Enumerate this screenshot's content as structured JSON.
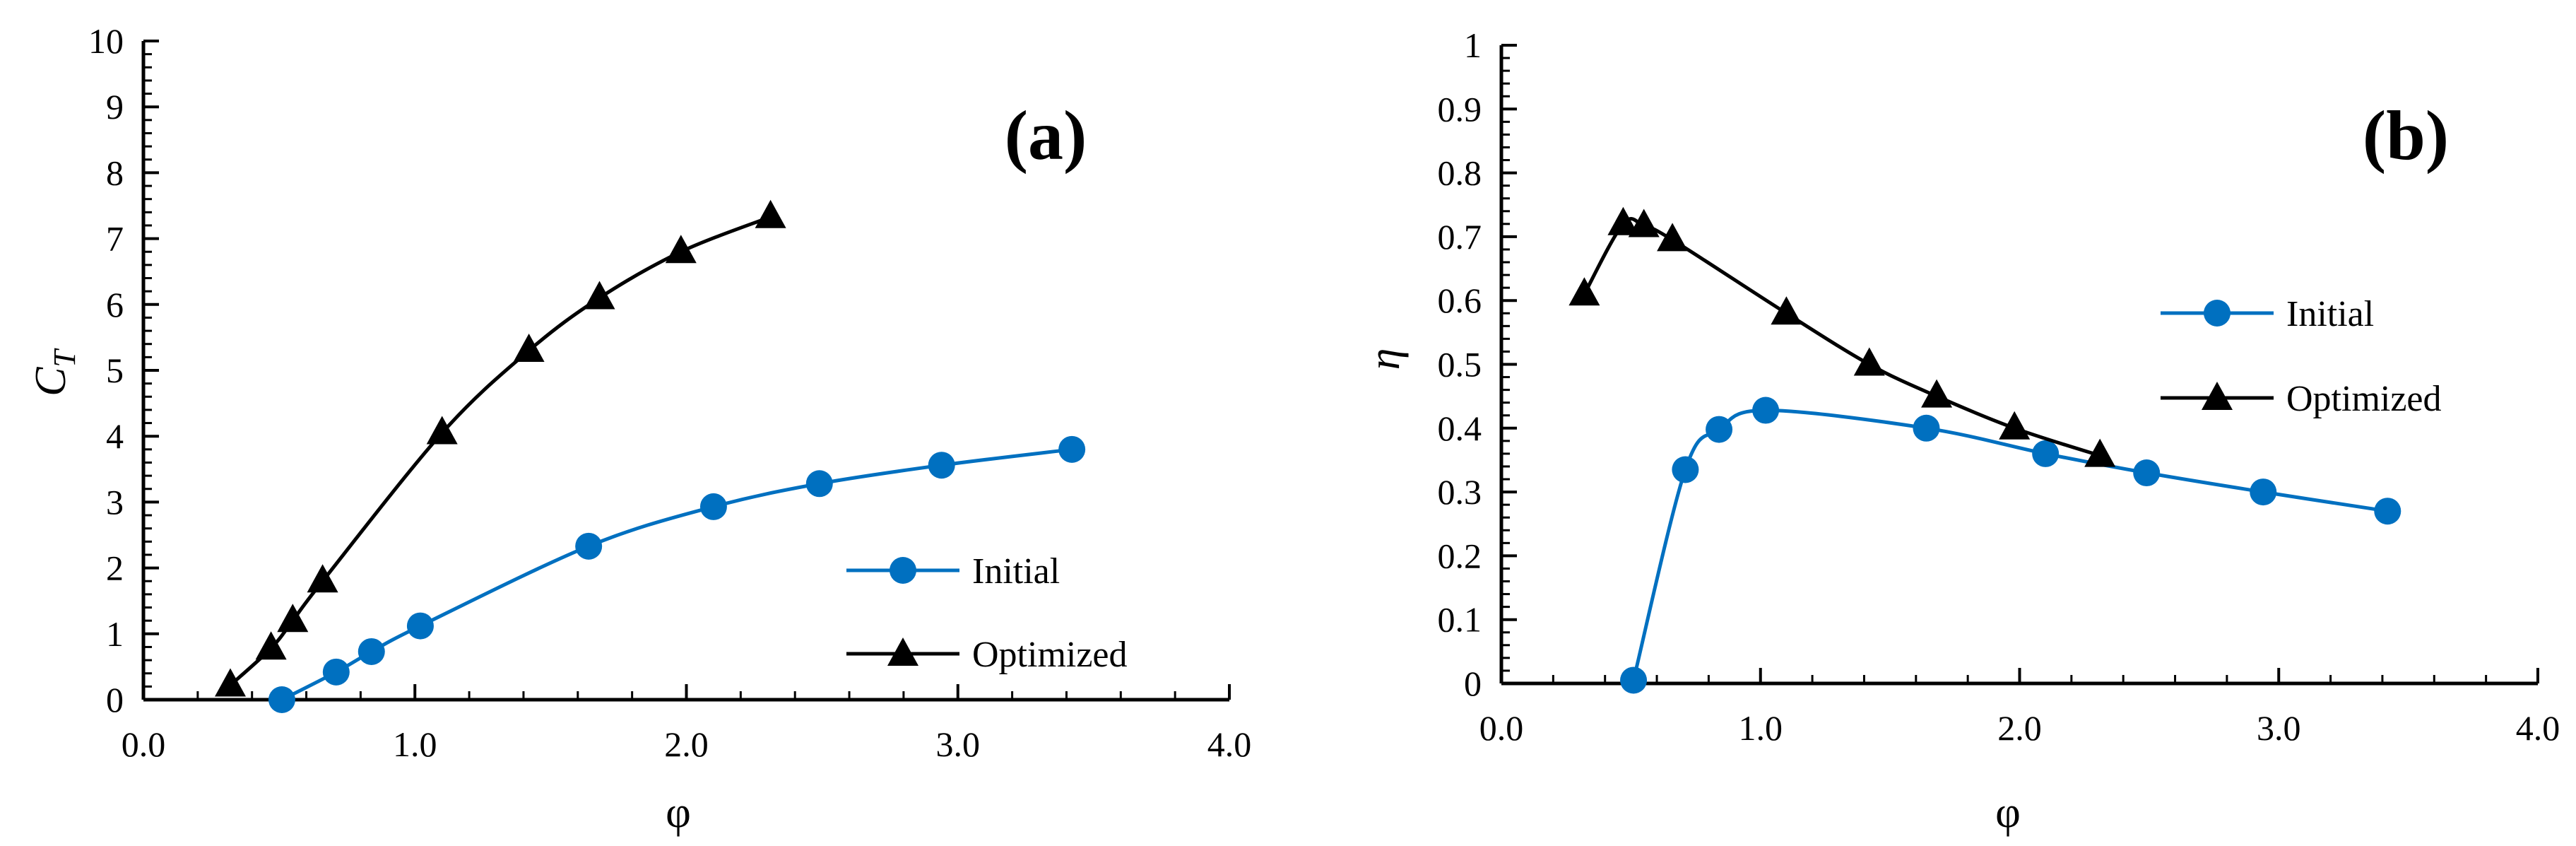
{
  "chart_data": [
    {
      "id": "a",
      "type": "line",
      "panel_label": "(a)",
      "xlabel": "φ",
      "ylabel": "C",
      "ylabel_subscript": "T",
      "xlim": [
        0,
        4
      ],
      "ylim": [
        0,
        10
      ],
      "xticks": [
        0,
        1,
        2,
        3,
        4
      ],
      "xtick_labels": [
        "0.0",
        "1.0",
        "2.0",
        "3.0",
        "4.0"
      ],
      "yticks": [
        0,
        1,
        2,
        3,
        4,
        5,
        6,
        7,
        8,
        9,
        10
      ],
      "ytick_labels": [
        "0",
        "1",
        "2",
        "3",
        "4",
        "5",
        "6",
        "7",
        "8",
        "9",
        "10"
      ],
      "x_minor_step": 0.2,
      "y_minor_step": 0.2,
      "grid": false,
      "legend_position": "bottom-right",
      "series": [
        {
          "name": "Initial",
          "color": "#0070C0",
          "marker": "circle",
          "x": [
            0.51,
            0.71,
            0.84,
            1.02,
            1.64,
            2.1,
            2.49,
            2.94,
            3.42
          ],
          "y": [
            0.0,
            0.42,
            0.73,
            1.12,
            2.33,
            2.93,
            3.28,
            3.56,
            3.8
          ]
        },
        {
          "name": "Optimized",
          "color": "#000000",
          "marker": "triangle",
          "x": [
            0.32,
            0.47,
            0.55,
            0.66,
            1.1,
            1.42,
            1.68,
            1.98,
            2.31
          ],
          "y": [
            0.22,
            0.78,
            1.2,
            1.8,
            4.05,
            5.3,
            6.1,
            6.8,
            7.33
          ]
        }
      ]
    },
    {
      "id": "b",
      "type": "line",
      "panel_label": "(b)",
      "xlabel": "φ",
      "ylabel": "η",
      "ylabel_subscript": "",
      "xlim": [
        0,
        4
      ],
      "ylim": [
        0,
        1
      ],
      "xticks": [
        0,
        1,
        2,
        3,
        4
      ],
      "xtick_labels": [
        "0.0",
        "1.0",
        "2.0",
        "3.0",
        "4.0"
      ],
      "yticks": [
        0,
        0.1,
        0.2,
        0.3,
        0.4,
        0.5,
        0.6,
        0.7,
        0.8,
        0.9,
        1
      ],
      "ytick_labels": [
        "0",
        "0.1",
        "0.2",
        "0.3",
        "0.4",
        "0.5",
        "0.6",
        "0.7",
        "0.8",
        "0.9",
        "1"
      ],
      "x_minor_step": 0.2,
      "y_minor_step": 0.02,
      "grid": false,
      "legend_position": "right",
      "series": [
        {
          "name": "Initial",
          "color": "#0070C0",
          "marker": "circle",
          "x": [
            0.51,
            0.71,
            0.84,
            1.02,
            1.64,
            2.1,
            2.49,
            2.94,
            3.42
          ],
          "y": [
            0.005,
            0.335,
            0.398,
            0.428,
            0.4,
            0.36,
            0.33,
            0.3,
            0.27
          ]
        },
        {
          "name": "Optimized",
          "color": "#000000",
          "marker": "triangle",
          "x": [
            0.32,
            0.47,
            0.55,
            0.66,
            1.1,
            1.42,
            1.68,
            1.98,
            2.31
          ],
          "y": [
            0.61,
            0.72,
            0.717,
            0.695,
            0.58,
            0.5,
            0.45,
            0.4,
            0.357
          ]
        }
      ]
    }
  ]
}
